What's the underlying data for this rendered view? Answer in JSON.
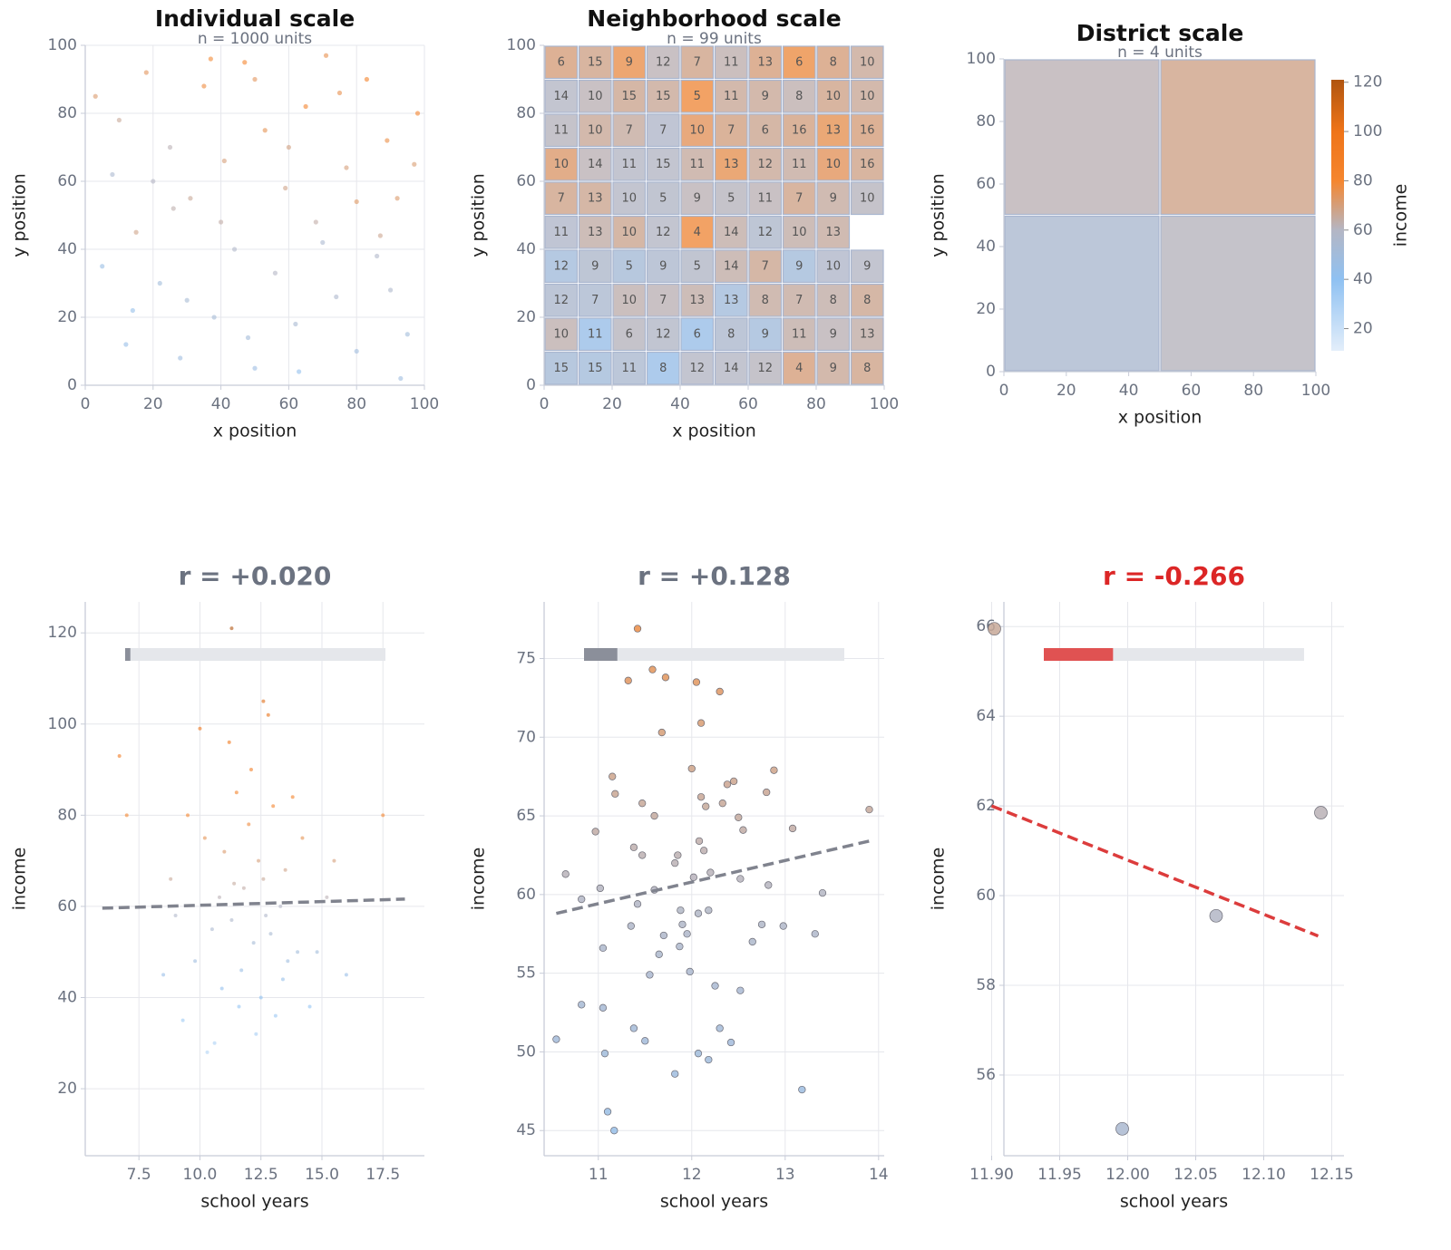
{
  "colormap": [
    [
      10,
      "#e3eefa"
    ],
    [
      40,
      "#8fc1f2"
    ],
    [
      60,
      "#b4b6c4"
    ],
    [
      80,
      "#f5862f"
    ],
    [
      100,
      "#ef7418"
    ],
    [
      121,
      "#b05510"
    ]
  ],
  "chart_data": [
    {
      "type": "scatter",
      "title": "Individual scale",
      "subtitle": "n = 1000 units",
      "xlabel": "x position",
      "ylabel": "y position",
      "xlim": [
        0,
        100
      ],
      "ylim": [
        0,
        100
      ],
      "xticks": [
        0,
        20,
        40,
        60,
        80,
        100
      ],
      "yticks": [
        0,
        20,
        40,
        60,
        80,
        100
      ],
      "grid": true,
      "marker_size": 2.6,
      "x": [
        3,
        8,
        12,
        15,
        18,
        22,
        25,
        28,
        31,
        35,
        38,
        41,
        44,
        47,
        50,
        53,
        56,
        59,
        62,
        65,
        68,
        71,
        74,
        77,
        80,
        83,
        86,
        89,
        92,
        95,
        98,
        5,
        10,
        20,
        30,
        40,
        50,
        60,
        70,
        80,
        90,
        97,
        14,
        26,
        37,
        48,
        63,
        75,
        87,
        93
      ],
      "y": [
        85,
        62,
        12,
        45,
        92,
        30,
        70,
        8,
        55,
        88,
        20,
        66,
        40,
        95,
        5,
        75,
        33,
        58,
        18,
        82,
        48,
        97,
        26,
        64,
        10,
        90,
        38,
        72,
        55,
        15,
        80,
        35,
        78,
        60,
        25,
        48,
        90,
        70,
        42,
        54,
        28,
        65,
        22,
        52,
        96,
        14,
        4,
        86,
        44,
        2
      ],
      "values": [
        72,
        55,
        45,
        68,
        74,
        50,
        62,
        48,
        66,
        78,
        52,
        70,
        58,
        80,
        47,
        75,
        60,
        68,
        54,
        82,
        64,
        76,
        56,
        70,
        49,
        85,
        58,
        77,
        72,
        50,
        80,
        46,
        66,
        60,
        53,
        64,
        74,
        69,
        55,
        73,
        57,
        71,
        44,
        63,
        79,
        51,
        42,
        76,
        67,
        48
      ]
    },
    {
      "type": "heatmap",
      "title": "Neighborhood scale",
      "subtitle": "n = 99 units",
      "xlabel": "x position",
      "ylabel": "y position",
      "xlim": [
        0,
        100
      ],
      "ylim": [
        0,
        100
      ],
      "xticks": [
        0,
        20,
        40,
        60,
        80,
        100
      ],
      "yticks": [
        0,
        20,
        40,
        60,
        80,
        100
      ],
      "rows": [
        {
          "counts": [
            6,
            15,
            9,
            12,
            7,
            11,
            13,
            6,
            8,
            10
          ],
          "values": [
            70,
            68,
            76,
            62,
            68,
            63,
            70,
            77,
            70,
            66
          ]
        },
        {
          "counts": [
            14,
            10,
            15,
            15,
            5,
            11,
            9,
            8,
            10,
            10
          ],
          "values": [
            60,
            62,
            67,
            66,
            78,
            66,
            66,
            63,
            68,
            66
          ]
        },
        {
          "counts": [
            11,
            10,
            7,
            7,
            10,
            7,
            6,
            16,
            13,
            16
          ],
          "values": [
            61,
            66,
            65,
            58,
            74,
            69,
            67,
            69,
            75,
            70
          ]
        },
        {
          "counts": [
            10,
            14,
            11,
            15,
            11,
            13,
            12,
            11,
            10,
            16
          ],
          "values": [
            72,
            62,
            60,
            60,
            65,
            75,
            66,
            65,
            74,
            68
          ]
        },
        {
          "counts": [
            7,
            13,
            10,
            5,
            9,
            5,
            11,
            7,
            9,
            10
          ],
          "values": [
            68,
            67,
            60,
            59,
            62,
            61,
            62,
            68,
            65,
            61
          ]
        },
        {
          "counts": [
            11,
            13,
            10,
            12,
            4,
            14,
            12,
            10,
            13
          ],
          "values": [
            58,
            64,
            67,
            60,
            78,
            64,
            57,
            64,
            65
          ]
        },
        {
          "counts": [
            12,
            9,
            5,
            9,
            5,
            14,
            7,
            9,
            10,
            9
          ],
          "values": [
            50,
            57,
            52,
            56,
            59,
            64,
            67,
            51,
            58,
            60
          ]
        },
        {
          "counts": [
            12,
            7,
            10,
            7,
            13,
            13,
            8,
            7,
            8,
            8
          ],
          "values": [
            56,
            55,
            63,
            62,
            64,
            50,
            65,
            65,
            64,
            67
          ]
        },
        {
          "counts": [
            10,
            11,
            6,
            12,
            6,
            8,
            9,
            11,
            9,
            13
          ],
          "values": [
            63,
            45,
            61,
            59,
            45,
            56,
            50,
            64,
            62,
            64
          ]
        },
        {
          "counts": [
            15,
            15,
            11,
            8,
            12,
            14,
            12,
            4,
            9,
            8
          ],
          "values": [
            52,
            51,
            55,
            45,
            60,
            60,
            61,
            70,
            66,
            68
          ]
        }
      ]
    },
    {
      "type": "heatmap",
      "title": "District scale",
      "subtitle": "n = 4 units",
      "xlabel": "x position",
      "ylabel": "y position",
      "xlim": [
        0,
        100
      ],
      "ylim": [
        0,
        100
      ],
      "xticks": [
        0,
        20,
        40,
        60,
        80,
        100
      ],
      "yticks": [
        0,
        20,
        40,
        60,
        80,
        100
      ],
      "rows": [
        {
          "values": [
            62,
            68
          ]
        },
        {
          "values": [
            55,
            61
          ]
        }
      ],
      "colorbar": {
        "label": "income",
        "lim": [
          11,
          121
        ],
        "ticks": [
          20,
          40,
          60,
          80,
          100,
          120
        ]
      }
    },
    {
      "type": "scatter",
      "title": "r = +0.020",
      "title_color": "#6b7280",
      "r": 0.02,
      "r_color": "#8b8f9a",
      "xlabel": "school years",
      "ylabel": "income",
      "xlim": [
        5.3,
        19.2
      ],
      "ylim": [
        5.3,
        126.8
      ],
      "xticks": [
        7.5,
        {
          "value": 10,
          "label": "10.0"
        },
        12.5,
        {
          "value": 15,
          "label": "15.0"
        },
        17.5
      ],
      "yticks": [
        20,
        40,
        60,
        80,
        100,
        120
      ],
      "grid": true,
      "marker_size": 2,
      "x": [
        9.5,
        10.2,
        11.0,
        11.5,
        12.0,
        12.4,
        13.0,
        13.5,
        14.2,
        10.8,
        11.8,
        12.6,
        13.3,
        9.0,
        10.5,
        11.3,
        12.2,
        12.9,
        14.0,
        15.2,
        8.5,
        9.8,
        10.9,
        11.7,
        12.5,
        13.4,
        14.5,
        16.0,
        7.0,
        17.5,
        10.0,
        11.2,
        12.1,
        12.8,
        13.8,
        9.3,
        10.6,
        11.6,
        12.3,
        13.1,
        14.8,
        8.8,
        11.4,
        12.7,
        6.7,
        15.5,
        11.3,
        12.6,
        10.3,
        13.6
      ],
      "y": [
        80,
        75,
        72,
        85,
        78,
        70,
        82,
        68,
        75,
        62,
        64,
        66,
        60,
        58,
        55,
        57,
        52,
        54,
        50,
        62,
        45,
        48,
        42,
        46,
        40,
        44,
        38,
        45,
        80,
        80,
        99,
        96,
        90,
        102,
        84,
        35,
        30,
        38,
        32,
        36,
        50,
        66,
        65,
        58,
        93,
        70,
        121,
        105,
        28,
        48
      ],
      "trend": {
        "color": "#80838e",
        "x": [
          6,
          18.4
        ],
        "y": [
          59.6,
          61.6
        ]
      }
    },
    {
      "type": "scatter",
      "title": "r = +0.128",
      "title_color": "#6b7280",
      "r": 0.128,
      "r_color": "#8b8f9a",
      "xlabel": "school years",
      "ylabel": "income",
      "xlim": [
        10.42,
        14.06
      ],
      "ylim": [
        43.4,
        78.6
      ],
      "xticks": [
        11,
        12,
        13,
        14
      ],
      "yticks": [
        45,
        50,
        55,
        60,
        65,
        70,
        75
      ],
      "grid": true,
      "marker_size": 3.8,
      "x": [
        10.55,
        10.65,
        10.82,
        10.82,
        10.97,
        11.02,
        11.05,
        11.05,
        11.07,
        11.1,
        11.17,
        11.15,
        11.18,
        11.32,
        11.35,
        11.38,
        11.38,
        11.42,
        11.42,
        11.47,
        11.47,
        11.5,
        11.55,
        11.58,
        11.6,
        11.6,
        11.65,
        11.68,
        11.7,
        11.72,
        11.82,
        11.82,
        11.85,
        11.87,
        11.88,
        11.9,
        11.95,
        11.98,
        12.0,
        12.02,
        12.05,
        12.07,
        12.07,
        12.08,
        12.1,
        12.1,
        12.13,
        12.15,
        12.18,
        12.18,
        12.2,
        12.25,
        12.3,
        12.3,
        12.33,
        12.38,
        12.42,
        12.45,
        12.5,
        12.52,
        12.52,
        12.55,
        12.65,
        12.75,
        12.8,
        12.82,
        12.88,
        12.98,
        13.08,
        13.18,
        13.32,
        13.4,
        13.9
      ],
      "y": [
        50.8,
        61.3,
        53.0,
        59.7,
        64.0,
        60.4,
        56.6,
        52.8,
        49.9,
        46.2,
        45.0,
        67.5,
        66.4,
        73.6,
        58.0,
        63.0,
        51.5,
        59.4,
        76.9,
        65.8,
        62.5,
        50.7,
        54.9,
        74.3,
        65.0,
        60.3,
        56.2,
        70.3,
        57.4,
        73.8,
        48.6,
        62.0,
        62.5,
        56.7,
        59.0,
        58.1,
        57.5,
        55.1,
        68.0,
        61.1,
        73.5,
        49.9,
        58.8,
        63.4,
        66.2,
        70.9,
        62.8,
        65.6,
        49.5,
        59.0,
        61.4,
        54.2,
        51.5,
        72.9,
        65.8,
        67.0,
        50.6,
        67.2,
        64.9,
        53.9,
        61.0,
        64.1,
        57.0,
        58.1,
        66.5,
        60.6,
        67.9,
        58.0,
        64.2,
        47.6,
        57.5,
        60.1,
        65.4
      ],
      "trend": {
        "color": "#80838e",
        "x": [
          10.55,
          13.9
        ],
        "y": [
          58.8,
          63.4
        ]
      }
    },
    {
      "type": "scatter",
      "title": "r = -0.266",
      "title_color": "#dc2626",
      "r": -0.266,
      "r_color": "#e05252",
      "xlabel": "school years",
      "ylabel": "income",
      "xlim": [
        11.909,
        12.159
      ],
      "ylim": [
        54.2,
        66.55
      ],
      "xticks": [
        {
          "value": 11.9,
          "label": "11.90"
        },
        11.95,
        {
          "value": 12,
          "label": "12.00"
        },
        12.05,
        {
          "value": 12.1,
          "label": "12.10"
        },
        12.15
      ],
      "yticks": [
        56,
        58,
        60,
        62,
        64,
        66
      ],
      "grid": true,
      "marker_size": 7,
      "x": [
        11.902,
        11.996,
        12.065,
        12.142
      ],
      "y": [
        65.95,
        54.8,
        59.55,
        61.85
      ],
      "trend": {
        "color": "#dc3c3c",
        "x": [
          11.9,
          12.14
        ],
        "y": [
          62.0,
          59.1
        ]
      }
    }
  ]
}
